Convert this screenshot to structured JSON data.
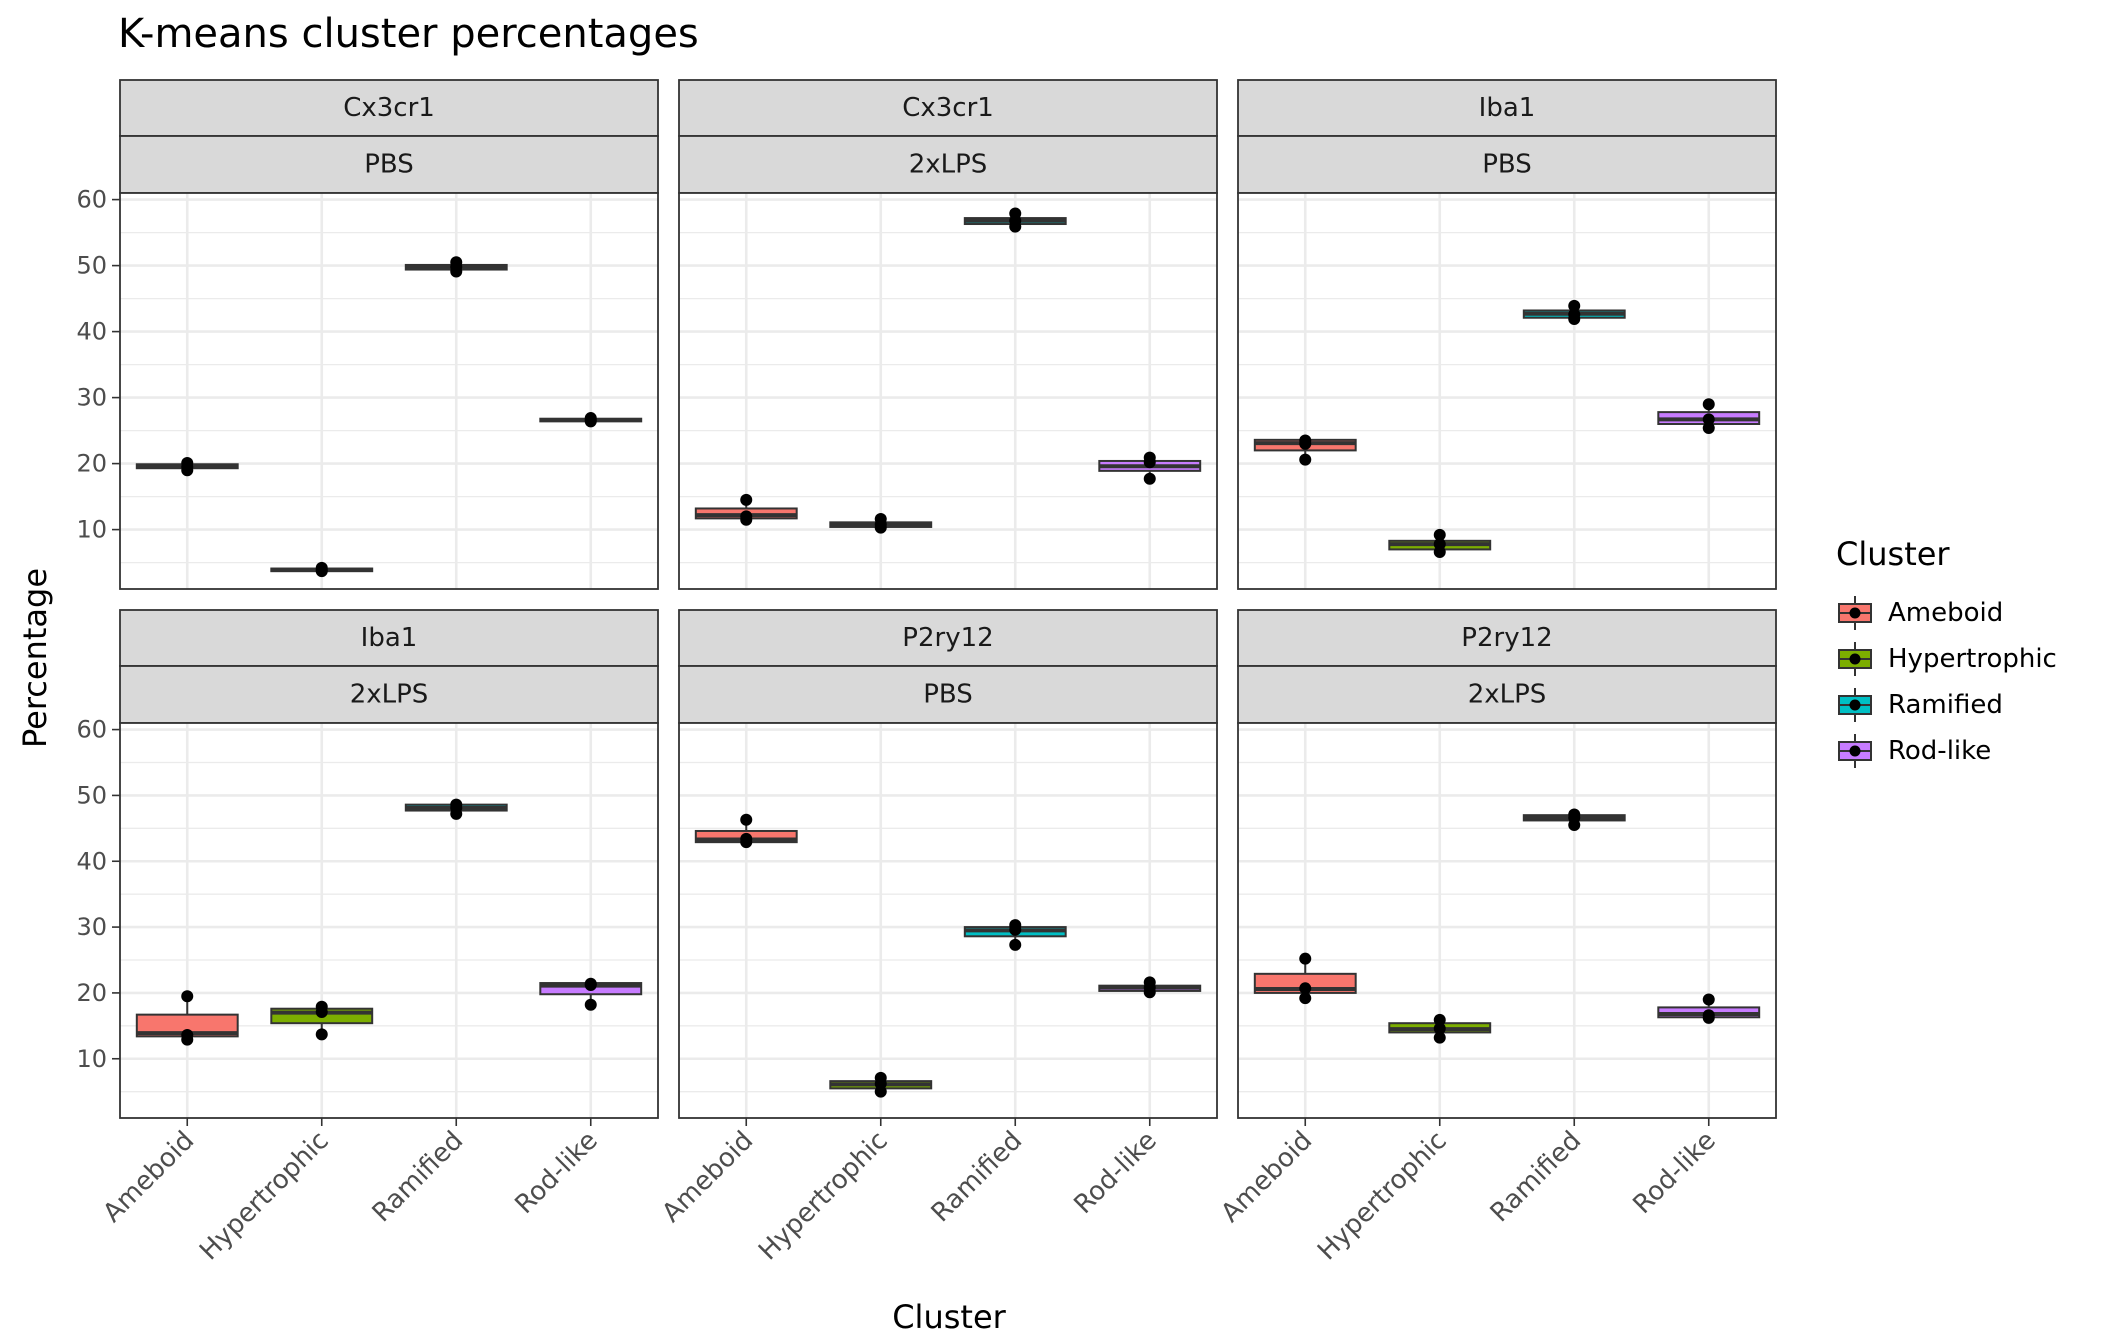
{
  "chart_data": {
    "type": "boxplot",
    "title": "K-means cluster percentages",
    "xlabel": "Cluster",
    "ylabel": "Percentage",
    "ylim": [
      1,
      61
    ],
    "y_ticks": [
      10,
      20,
      30,
      40,
      50,
      60
    ],
    "categories": [
      "Ameboid",
      "Hypertrophic",
      "Ramified",
      "Rod-like"
    ],
    "legend": {
      "title": "Cluster",
      "position": "right",
      "entries": [
        {
          "label": "Ameboid",
          "color": "#F8766D"
        },
        {
          "label": "Hypertrophic",
          "color": "#7CAE00"
        },
        {
          "label": "Ramified",
          "color": "#00BFC4"
        },
        {
          "label": "Rod-like",
          "color": "#C77CFF"
        }
      ]
    },
    "grid": true,
    "panels": [
      {
        "strip_top": "Cx3cr1",
        "strip_bottom": "PBS",
        "boxes": [
          {
            "category": "Ameboid",
            "q1": 19.3,
            "median": 19.6,
            "q3": 19.9,
            "whisker_low": 19.0,
            "whisker_high": 20.1,
            "points": [
              19.0,
              19.5,
              20.1
            ]
          },
          {
            "category": "Hypertrophic",
            "q1": 3.7,
            "median": 3.9,
            "q3": 4.1,
            "whisker_low": 3.6,
            "whisker_high": 4.3,
            "points": [
              3.7,
              3.9,
              4.2
            ]
          },
          {
            "category": "Ramified",
            "q1": 49.4,
            "median": 49.8,
            "q3": 50.1,
            "whisker_low": 49.1,
            "whisker_high": 50.5,
            "points": [
              49.1,
              49.8,
              50.5
            ]
          },
          {
            "category": "Rod-like",
            "q1": 26.4,
            "median": 26.6,
            "q3": 26.8,
            "whisker_low": 26.3,
            "whisker_high": 27.0,
            "points": [
              26.4,
              26.6,
              26.9
            ]
          }
        ]
      },
      {
        "strip_top": "Cx3cr1",
        "strip_bottom": "2xLPS",
        "boxes": [
          {
            "category": "Ameboid",
            "q1": 11.7,
            "median": 12.2,
            "q3": 13.2,
            "whisker_low": 11.5,
            "whisker_high": 14.5,
            "points": [
              11.5,
              12.0,
              14.5
            ]
          },
          {
            "category": "Hypertrophic",
            "q1": 10.4,
            "median": 10.7,
            "q3": 11.1,
            "whisker_low": 10.3,
            "whisker_high": 11.6,
            "points": [
              10.3,
              10.8,
              11.6
            ]
          },
          {
            "category": "Ramified",
            "q1": 56.3,
            "median": 56.8,
            "q3": 57.2,
            "whisker_low": 55.9,
            "whisker_high": 57.9,
            "points": [
              55.9,
              56.8,
              57.9
            ]
          },
          {
            "category": "Rod-like",
            "q1": 18.9,
            "median": 19.6,
            "q3": 20.4,
            "whisker_low": 17.7,
            "whisker_high": 20.9,
            "points": [
              17.7,
              20.2,
              20.9
            ]
          }
        ]
      },
      {
        "strip_top": "Iba1",
        "strip_bottom": "PBS",
        "boxes": [
          {
            "category": "Ameboid",
            "q1": 22.0,
            "median": 23.1,
            "q3": 23.6,
            "whisker_low": 20.6,
            "whisker_high": 23.6,
            "points": [
              20.6,
              23.0,
              23.5
            ]
          },
          {
            "category": "Hypertrophic",
            "q1": 7.0,
            "median": 7.8,
            "q3": 8.3,
            "whisker_low": 6.6,
            "whisker_high": 9.2,
            "points": [
              6.6,
              7.8,
              9.2
            ]
          },
          {
            "category": "Ramified",
            "q1": 42.1,
            "median": 42.7,
            "q3": 43.2,
            "whisker_low": 41.9,
            "whisker_high": 43.9,
            "points": [
              41.9,
              42.6,
              43.9
            ]
          },
          {
            "category": "Rod-like",
            "q1": 26.0,
            "median": 26.7,
            "q3": 27.8,
            "whisker_low": 25.4,
            "whisker_high": 29.0,
            "points": [
              25.4,
              26.7,
              29.0
            ]
          }
        ]
      },
      {
        "strip_top": "Iba1",
        "strip_bottom": "2xLPS",
        "boxes": [
          {
            "category": "Ameboid",
            "q1": 13.4,
            "median": 13.9,
            "q3": 16.7,
            "whisker_low": 12.9,
            "whisker_high": 19.5,
            "points": [
              12.9,
              13.6,
              19.5
            ]
          },
          {
            "category": "Hypertrophic",
            "q1": 15.4,
            "median": 17.0,
            "q3": 17.6,
            "whisker_low": 13.7,
            "whisker_high": 17.9,
            "points": [
              13.7,
              17.1,
              17.9
            ]
          },
          {
            "category": "Ramified",
            "q1": 47.7,
            "median": 48.1,
            "q3": 48.6,
            "whisker_low": 47.2,
            "whisker_high": 48.6,
            "points": [
              47.2,
              48.1,
              48.6
            ]
          },
          {
            "category": "Rod-like",
            "q1": 19.8,
            "median": 21.1,
            "q3": 21.5,
            "whisker_low": 18.2,
            "whisker_high": 21.5,
            "points": [
              18.2,
              21.2,
              21.4
            ]
          }
        ]
      },
      {
        "strip_top": "P2ry12",
        "strip_bottom": "PBS",
        "boxes": [
          {
            "category": "Ameboid",
            "q1": 42.9,
            "median": 43.3,
            "q3": 44.6,
            "whisker_low": 42.9,
            "whisker_high": 46.3,
            "points": [
              42.9,
              43.4,
              46.3
            ]
          },
          {
            "category": "Hypertrophic",
            "q1": 5.5,
            "median": 6.1,
            "q3": 6.6,
            "whisker_low": 5.0,
            "whisker_high": 7.1,
            "points": [
              5.0,
              6.2,
              7.1
            ]
          },
          {
            "category": "Ramified",
            "q1": 28.6,
            "median": 29.5,
            "q3": 30.0,
            "whisker_low": 27.3,
            "whisker_high": 30.3,
            "points": [
              27.3,
              29.6,
              30.3
            ]
          },
          {
            "category": "Rod-like",
            "q1": 20.3,
            "median": 20.8,
            "q3": 21.1,
            "whisker_low": 20.1,
            "whisker_high": 21.6,
            "points": [
              20.1,
              20.8,
              21.6
            ]
          }
        ]
      },
      {
        "strip_top": "P2ry12",
        "strip_bottom": "2xLPS",
        "boxes": [
          {
            "category": "Ameboid",
            "q1": 20.0,
            "median": 20.6,
            "q3": 22.9,
            "whisker_low": 19.2,
            "whisker_high": 25.2,
            "points": [
              19.2,
              20.7,
              25.2
            ]
          },
          {
            "category": "Hypertrophic",
            "q1": 14.0,
            "median": 14.5,
            "q3": 15.4,
            "whisker_low": 13.2,
            "whisker_high": 15.9,
            "points": [
              13.2,
              14.6,
              15.9
            ]
          },
          {
            "category": "Ramified",
            "q1": 46.2,
            "median": 46.6,
            "q3": 47.0,
            "whisker_low": 45.5,
            "whisker_high": 47.1,
            "points": [
              45.5,
              46.6,
              47.1
            ]
          },
          {
            "category": "Rod-like",
            "q1": 16.3,
            "median": 16.8,
            "q3": 17.8,
            "whisker_low": 16.2,
            "whisker_high": 19.0,
            "points": [
              16.2,
              16.6,
              19.0
            ]
          }
        ]
      }
    ]
  }
}
